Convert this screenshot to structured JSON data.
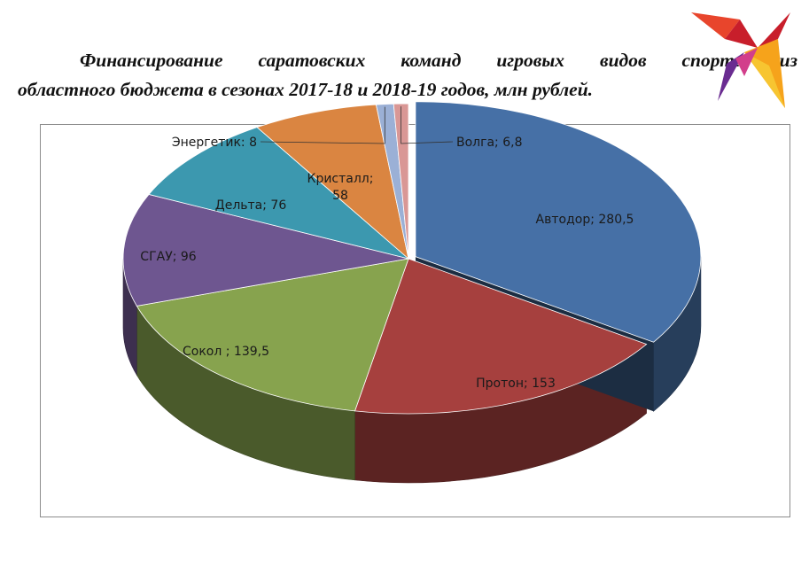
{
  "title": {
    "line1": "Финансирование саратовских команд игровых видов спорта из",
    "line2": "областного бюджета в сезонах 2017-18 и 2018-19 годов, млн рублей."
  },
  "logo_icon": "bird-logo-icon",
  "chart_data": {
    "type": "pie",
    "title": "Финансирование саратовских команд игровых видов спорта из областного бюджета в сезонах 2017-18 и 2018-19 годов, млн рублей.",
    "labels_shown": true,
    "legend": "none",
    "slices": [
      {
        "name": "Автодор",
        "value": 280.5,
        "label": "Автодор; 280,5",
        "color": "#4670A6"
      },
      {
        "name": "Протон",
        "value": 153,
        "label": "Протон; 153",
        "color": "#A6403E"
      },
      {
        "name": "Сокол",
        "value": 139.5,
        "label": "Сокол ; 139,5",
        "color": "#87A34E"
      },
      {
        "name": "СГАУ",
        "value": 96,
        "label": "СГАУ; 96",
        "color": "#6E5690"
      },
      {
        "name": "Дельта",
        "value": 76,
        "label": "Дельта; 76",
        "color": "#3C98AF"
      },
      {
        "name": "Кристалл",
        "value": 58,
        "label": "Кристалл; 58",
        "color": "#DA8541"
      },
      {
        "name": "Энергетик",
        "value": 8,
        "label": "Энергетик: 8",
        "color": "#9BB0D6"
      },
      {
        "name": "Волга",
        "value": 6.8,
        "label": "Волга; 6,8",
        "color": "#D99795"
      }
    ]
  }
}
